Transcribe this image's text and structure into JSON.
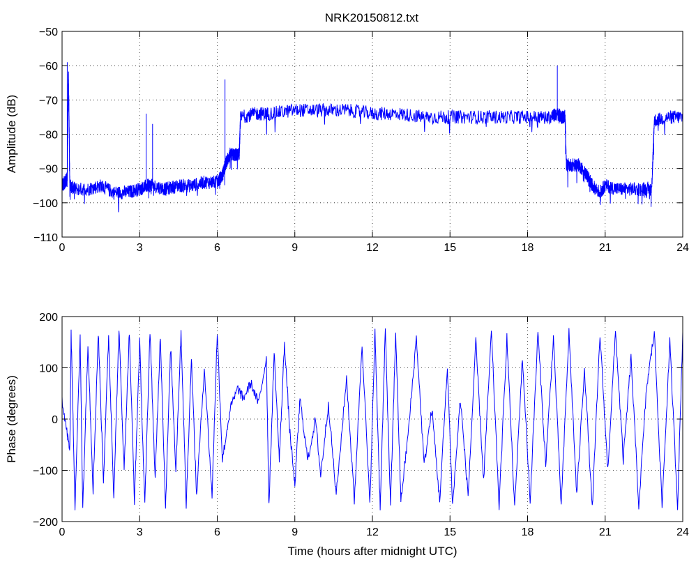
{
  "chart_data": [
    {
      "type": "line",
      "title": "NRK20150812.txt",
      "xlabel": "",
      "ylabel": "Amplitude (dB)",
      "xlim": [
        0,
        24
      ],
      "ylim": [
        -110,
        -50
      ],
      "xticks": [
        0,
        3,
        6,
        9,
        12,
        15,
        18,
        21,
        24
      ],
      "yticks": [
        -110,
        -100,
        -90,
        -80,
        -70,
        -60,
        -50
      ],
      "grid": true,
      "color": "#0000ff",
      "series": [
        {
          "x": [
            0.0,
            0.1,
            0.2,
            0.25,
            0.3,
            0.5,
            1.0,
            1.5,
            2.0,
            2.5,
            3.0,
            3.3,
            3.5,
            4.0,
            4.5,
            5.0,
            5.5,
            6.0,
            6.2,
            6.35,
            6.5,
            6.7,
            6.85,
            6.9,
            7.5,
            8.0,
            9.0,
            10.0,
            11.0,
            12.0,
            13.0,
            14.0,
            15.0,
            16.0,
            17.0,
            18.0,
            18.9,
            19.15,
            19.3,
            19.45,
            19.5,
            19.8,
            20.0,
            20.3,
            20.5,
            20.8,
            21.0,
            21.5,
            22.0,
            22.5,
            22.8,
            22.9,
            23.5,
            24.0
          ],
          "y": [
            -95,
            -94,
            -93,
            -62,
            -95,
            -96,
            -96,
            -95,
            -97,
            -97,
            -96,
            -95,
            -95,
            -96,
            -95,
            -95,
            -94,
            -94,
            -92,
            -88,
            -86,
            -86,
            -86,
            -75,
            -74,
            -74,
            -73,
            -73,
            -73,
            -74,
            -74,
            -75,
            -75,
            -75,
            -75,
            -75,
            -75,
            -74,
            -75,
            -75,
            -89,
            -89,
            -89,
            -92,
            -95,
            -97,
            -95,
            -96,
            -96,
            -96,
            -96,
            -76,
            -75,
            -75
          ]
        }
      ],
      "spikes": [
        {
          "x": 0.2,
          "y": -59
        },
        {
          "x": 3.25,
          "y": -74
        },
        {
          "x": 3.5,
          "y": -77
        },
        {
          "x": 6.3,
          "y": -64
        },
        {
          "x": 19.15,
          "y": -60
        }
      ]
    },
    {
      "type": "line",
      "title": "",
      "xlabel": "Time (hours after midnight UTC)",
      "ylabel": "Phase (degrees)",
      "xlim": [
        0,
        24
      ],
      "ylim": [
        -200,
        200
      ],
      "xticks": [
        0,
        3,
        6,
        9,
        12,
        15,
        18,
        21,
        24
      ],
      "yticks": [
        -200,
        -100,
        0,
        100,
        200
      ],
      "grid": true,
      "color": "#0000ff",
      "series": [
        {
          "x": [
            0.0,
            0.2,
            0.3,
            0.35,
            0.5,
            0.7,
            0.8,
            1.0,
            1.2,
            1.4,
            1.6,
            1.8,
            2.0,
            2.2,
            2.4,
            2.6,
            2.8,
            3.0,
            3.2,
            3.4,
            3.6,
            3.8,
            4.0,
            4.2,
            4.4,
            4.6,
            4.8,
            5.0,
            5.2,
            5.5,
            5.8,
            6.0,
            6.2,
            6.5,
            6.8,
            7.0,
            7.3,
            7.6,
            7.9,
            8.0,
            8.2,
            8.4,
            8.6,
            8.8,
            9.0,
            9.2,
            9.5,
            9.8,
            10.0,
            10.3,
            10.6,
            11.0,
            11.3,
            11.6,
            11.9,
            12.1,
            12.3,
            12.5,
            12.7,
            12.9,
            13.1,
            13.4,
            13.7,
            14.0,
            14.3,
            14.6,
            14.9,
            15.1,
            15.4,
            15.7,
            16.0,
            16.3,
            16.6,
            16.9,
            17.2,
            17.5,
            17.8,
            18.1,
            18.4,
            18.7,
            19.0,
            19.3,
            19.6,
            19.9,
            20.2,
            20.5,
            20.8,
            21.1,
            21.4,
            21.7,
            22.0,
            22.3,
            22.6,
            22.9,
            23.2,
            23.5,
            23.8,
            24.0
          ],
          "y": [
            40,
            -30,
            -60,
            170,
            -170,
            160,
            -175,
            150,
            -140,
            170,
            -120,
            160,
            -150,
            175,
            -100,
            170,
            -160,
            150,
            -170,
            175,
            -120,
            165,
            -170,
            140,
            -100,
            170,
            -170,
            120,
            -150,
            100,
            -150,
            170,
            -80,
            20,
            60,
            40,
            70,
            30,
            120,
            -170,
            130,
            -80,
            150,
            -20,
            -130,
            40,
            -80,
            0,
            -110,
            30,
            -150,
            80,
            -160,
            150,
            -170,
            170,
            -175,
            175,
            -170,
            170,
            -160,
            -20,
            160,
            -90,
            20,
            -160,
            100,
            -170,
            40,
            -150,
            150,
            -120,
            170,
            -170,
            160,
            -175,
            120,
            -160,
            170,
            -90,
            160,
            -170,
            170,
            -150,
            100,
            -175,
            165,
            -100,
            170,
            -80,
            120,
            -170,
            60,
            170,
            -170,
            150,
            -170,
            170
          ]
        }
      ]
    }
  ]
}
